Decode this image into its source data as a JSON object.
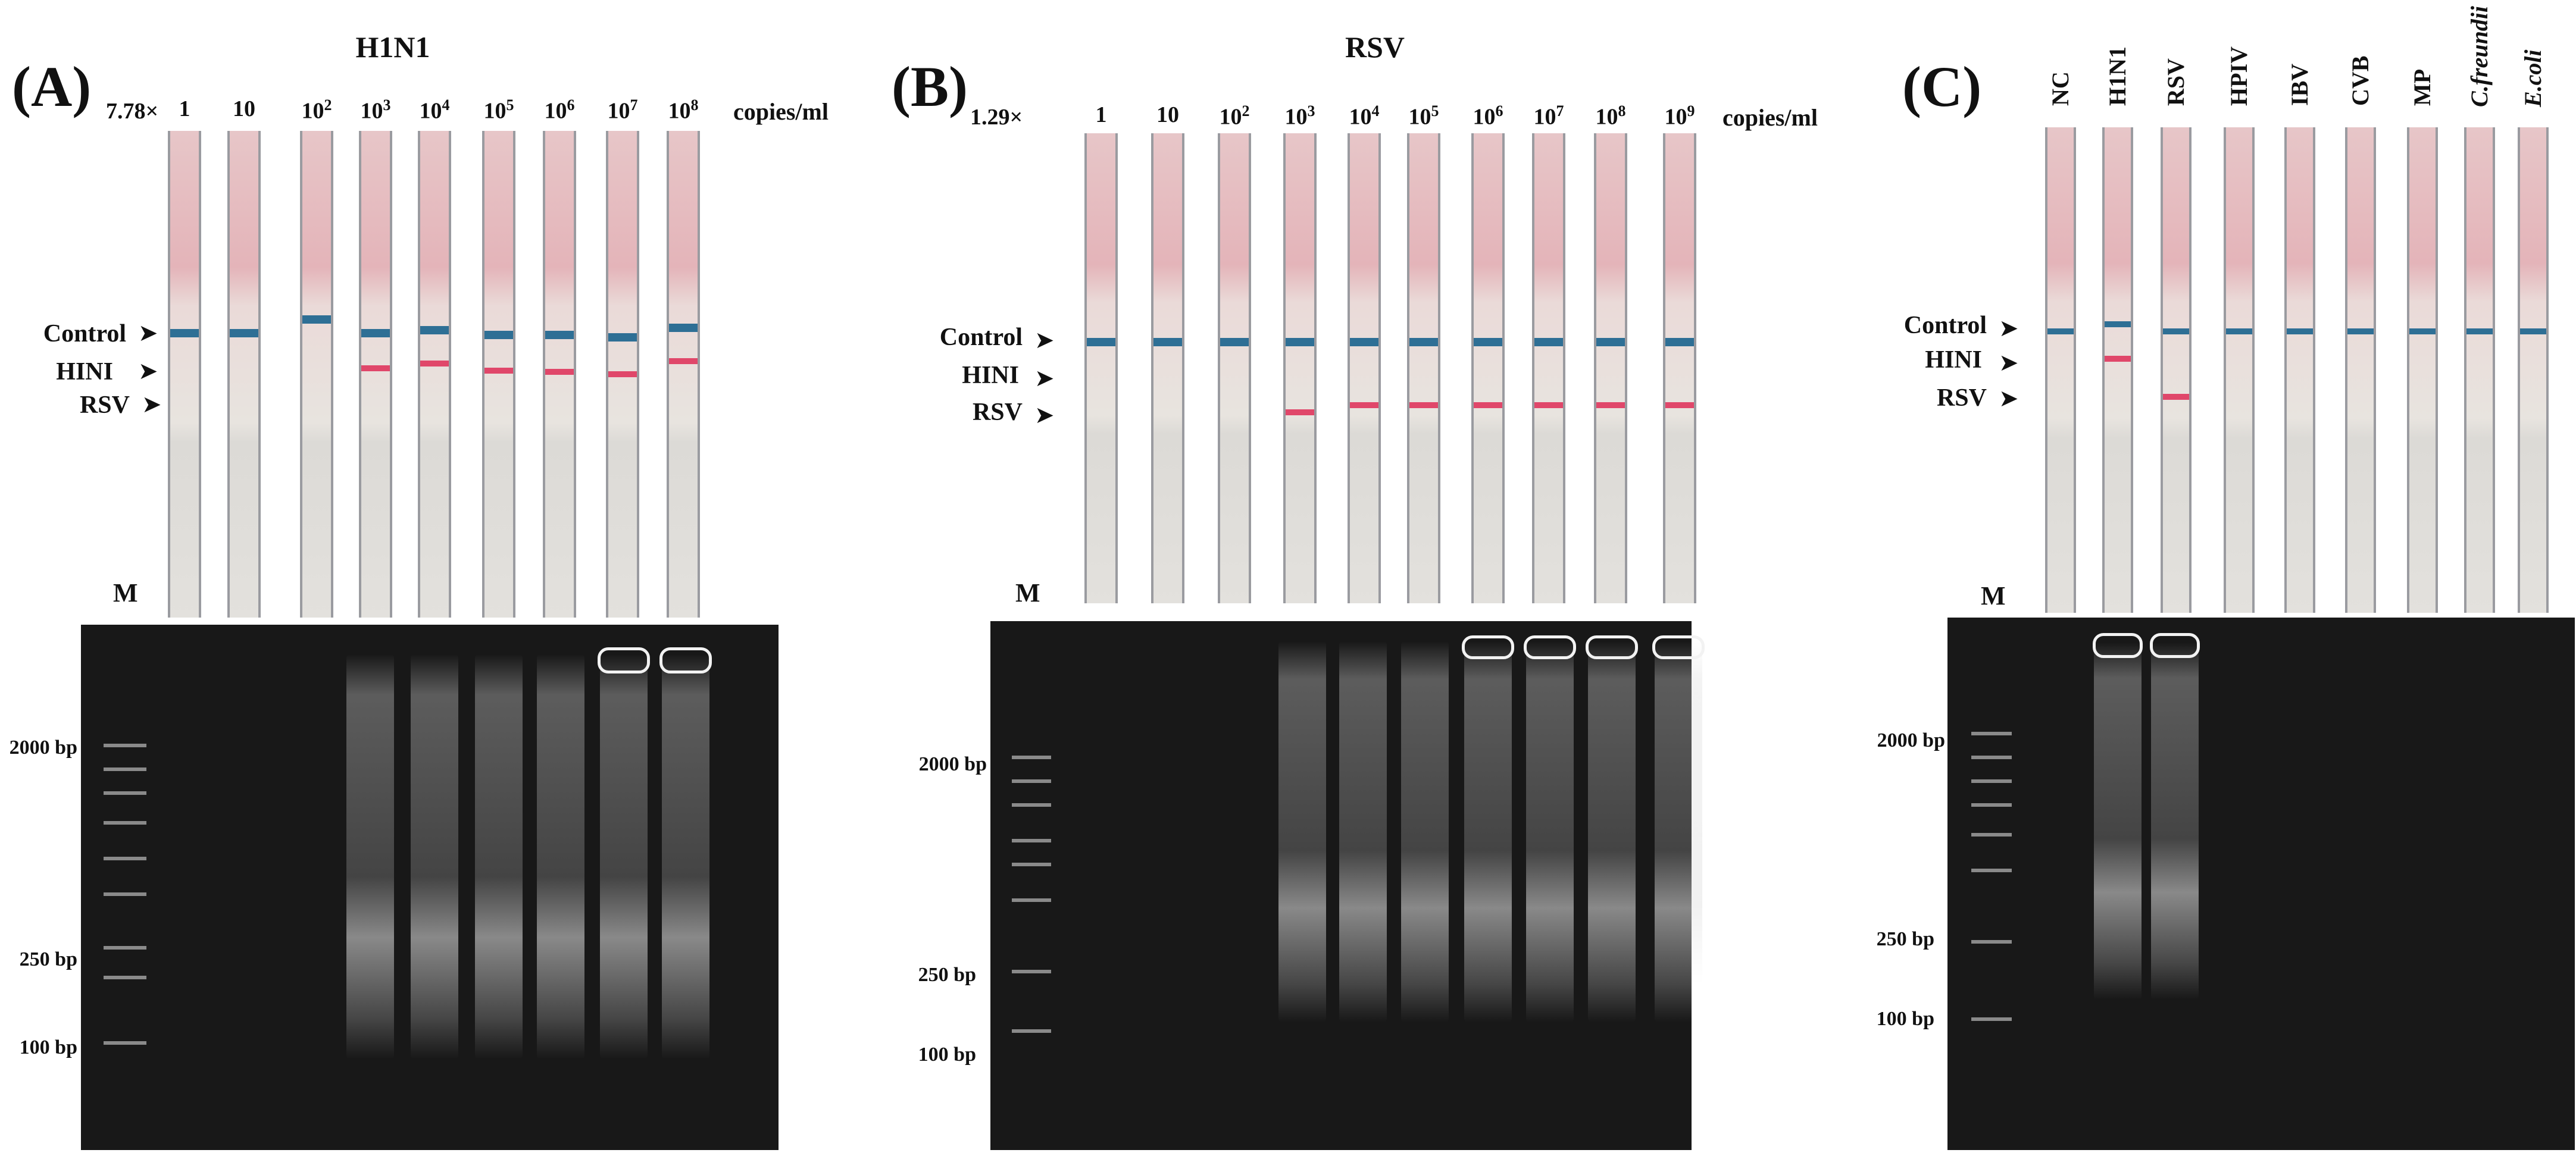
{
  "panelA": {
    "label": "(A)",
    "title": "H1N1",
    "prefix": "7.78×",
    "concentrations": [
      "1",
      "10",
      "10^2",
      "10^3",
      "10^4",
      "10^5",
      "10^6",
      "10^7",
      "10^8"
    ],
    "units": "copies/ml",
    "line_labels": [
      "Control",
      "HINI",
      "RSV"
    ],
    "marker": "M",
    "bp_labels": [
      "2000 bp",
      "250 bp",
      "100 bp"
    ]
  },
  "panelB": {
    "label": "(B)",
    "title": "RSV",
    "prefix": "1.29×",
    "concentrations": [
      "1",
      "10",
      "10^2",
      "10^3",
      "10^4",
      "10^5",
      "10^6",
      "10^7",
      "10^8",
      "10^9"
    ],
    "units": "copies/ml",
    "line_labels": [
      "Control",
      "HINI",
      "RSV"
    ],
    "marker": "M",
    "bp_labels": [
      "2000 bp",
      "250 bp",
      "100 bp"
    ]
  },
  "panelC": {
    "label": "(C)",
    "samples": [
      "NC",
      "H1N1",
      "RSV",
      "HPIV",
      "IBV",
      "CVB",
      "MP",
      "C.freundii",
      "E.coli"
    ],
    "line_labels": [
      "Control",
      "HINI",
      "RSV"
    ],
    "marker": "M",
    "bp_labels": [
      "2000 bp",
      "250 bp",
      "100 bp"
    ]
  },
  "colors": {
    "control_band": "#2e6f95",
    "test_band": "#e0476a",
    "gel_background": "#181818"
  }
}
